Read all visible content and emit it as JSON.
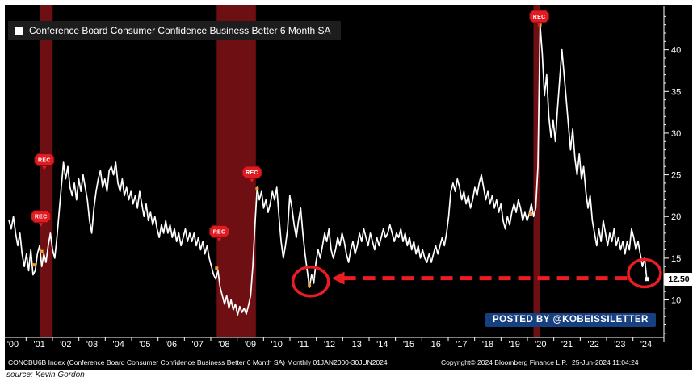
{
  "watermark": {
    "text": "POSTED BY @KOBEISSILETTER"
  },
  "source": {
    "text": "source: Kevin Gordon"
  },
  "footer": {
    "left": "CONCBU6B Index (Conference Board Consumer Confidence Business Better 6 Month SA)  Monthly 01JAN2000-30JUN2024",
    "copyright": "Copyright© 2024 Bloomberg Finance L.P.",
    "timestamp": "25-Jun-2024 11:04:24"
  },
  "chart_data": {
    "type": "line",
    "title": "Conference Board Consumer Confidence Business Better 6 Month SA",
    "frequency": "monthly",
    "start_year": 2000,
    "period": "01JAN2000-30JUN2024",
    "last_value": 12.5,
    "last_value_label": "12.50",
    "x_tick_labels": [
      "'00",
      "'01",
      "'02",
      "'03",
      "'04",
      "'05",
      "'06",
      "'07",
      "'08",
      "'09",
      "'10",
      "'11",
      "'12",
      "'13",
      "'14",
      "'15",
      "'16",
      "'17",
      "'18",
      "'19",
      "'20",
      "'21",
      "'22",
      "'23",
      "'24"
    ],
    "y_ticks": [
      10,
      15,
      20,
      25,
      30,
      35,
      40
    ],
    "ylim": [
      5.5,
      45
    ],
    "xlim": [
      1999.9,
      2024.95
    ],
    "values": [
      19.5,
      18.5,
      20.0,
      18.0,
      16.5,
      18.0,
      15.5,
      14.0,
      15.5,
      13.5,
      16.0,
      13.0,
      13.5,
      15.5,
      16.5,
      14.0,
      15.5,
      14.5,
      16.5,
      18.0,
      16.0,
      15.0,
      17.5,
      20.5,
      23.5,
      26.5,
      24.5,
      26.0,
      23.5,
      22.5,
      24.0,
      22.0,
      24.5,
      23.0,
      25.0,
      23.5,
      22.0,
      19.5,
      18.0,
      21.0,
      23.0,
      24.5,
      25.5,
      23.5,
      24.5,
      23.0,
      25.5,
      26.0,
      25.0,
      26.5,
      24.0,
      23.0,
      24.5,
      22.5,
      23.5,
      22.0,
      23.0,
      21.5,
      22.5,
      21.0,
      23.0,
      21.5,
      20.0,
      21.5,
      19.5,
      20.5,
      19.0,
      20.0,
      18.5,
      17.5,
      19.0,
      18.0,
      19.5,
      18.0,
      19.0,
      17.5,
      18.5,
      17.0,
      18.0,
      16.5,
      17.5,
      18.5,
      17.0,
      18.0,
      17.0,
      18.0,
      16.5,
      17.5,
      16.0,
      17.0,
      15.5,
      16.5,
      15.0,
      14.0,
      13.0,
      12.5,
      13.5,
      11.5,
      10.5,
      9.5,
      10.5,
      9.0,
      10.0,
      8.8,
      9.5,
      8.2,
      9.2,
      8.5,
      9.0,
      8.3,
      9.3,
      10.5,
      14.0,
      19.0,
      23.5,
      22.0,
      23.0,
      21.0,
      22.0,
      20.5,
      21.5,
      23.0,
      22.0,
      23.5,
      20.0,
      17.0,
      15.0,
      16.5,
      18.5,
      22.5,
      21.0,
      19.0,
      17.5,
      19.5,
      21.0,
      18.0,
      15.5,
      13.5,
      11.5,
      13.0,
      12.0,
      14.5,
      16.0,
      15.0,
      16.5,
      18.0,
      17.0,
      18.5,
      16.0,
      15.0,
      16.0,
      17.5,
      16.5,
      18.0,
      17.0,
      15.5,
      14.5,
      16.0,
      17.0,
      15.5,
      16.5,
      18.0,
      17.0,
      18.5,
      17.5,
      16.5,
      18.0,
      17.0,
      16.0,
      17.5,
      16.5,
      17.5,
      18.5,
      17.5,
      18.0,
      19.0,
      18.0,
      17.0,
      18.0,
      17.5,
      18.5,
      17.0,
      18.0,
      16.5,
      17.5,
      16.0,
      17.0,
      15.5,
      16.5,
      15.0,
      16.0,
      15.0,
      14.5,
      15.5,
      14.5,
      15.5,
      16.5,
      15.5,
      16.5,
      17.5,
      16.5,
      18.0,
      20.0,
      23.0,
      24.0,
      23.0,
      24.5,
      23.5,
      22.0,
      23.0,
      21.5,
      22.5,
      21.0,
      22.0,
      23.5,
      22.5,
      24.0,
      25.0,
      23.5,
      22.0,
      23.0,
      21.5,
      22.5,
      21.0,
      22.0,
      20.5,
      21.5,
      19.5,
      18.5,
      20.0,
      19.0,
      20.5,
      21.5,
      20.5,
      22.0,
      21.0,
      19.5,
      20.5,
      19.5,
      20.3,
      21.5,
      20.0,
      21.0,
      26.0,
      43.0,
      39.5,
      34.5,
      37.0,
      32.0,
      29.5,
      31.5,
      29.0,
      33.0,
      36.5,
      40.0,
      37.0,
      34.0,
      31.0,
      28.0,
      30.5,
      27.0,
      25.0,
      27.5,
      24.5,
      26.0,
      23.0,
      21.0,
      22.5,
      19.5,
      18.0,
      16.5,
      18.5,
      17.0,
      19.5,
      18.0,
      16.5,
      18.0,
      17.0,
      18.5,
      16.5,
      17.5,
      16.0,
      17.0,
      15.5,
      17.0,
      16.0,
      18.5,
      17.5,
      16.0,
      17.0,
      15.5,
      14.0,
      15.0,
      12.5
    ],
    "recession_bands": [
      [
        2001.17,
        2001.67
      ],
      [
        2007.95,
        2009.45
      ],
      [
        2020.08,
        2020.33
      ]
    ],
    "rec_badge_label": "REC",
    "rec_badges": [
      {
        "year": 2001.35,
        "value": 26.8
      },
      {
        "year": 2001.22,
        "value": 20.0
      },
      {
        "year": 2008.05,
        "value": 18.2
      },
      {
        "year": 2009.3,
        "value": 25.3
      },
      {
        "year": 2020.3,
        "value": 44.0
      }
    ],
    "markers": [
      [
        2000.95,
        14.2
      ],
      [
        2001.25,
        15.8
      ],
      [
        2007.95,
        13.8
      ],
      [
        2009.5,
        23.3
      ],
      [
        2011.5,
        11.8
      ],
      [
        2019.97,
        20.3
      ],
      [
        2020.33,
        43.0
      ]
    ],
    "annotations": {
      "circles": [
        {
          "year": 2011.55,
          "value": 12.2,
          "rx": 22,
          "ry": 18
        },
        {
          "year": 2024.33,
          "value": 13.2,
          "rx": 20,
          "ry": 17
        }
      ],
      "arrow": {
        "value": 12.6,
        "from_year": 2023.7,
        "to_year": 2012.35
      }
    },
    "colors": {
      "line": "#ffffff",
      "background": "#000000",
      "recession_band": "#6e1013",
      "rec_badge": "#e11b22",
      "annotation": "#ec1c24",
      "marker": "#f0a030",
      "axis": "#ffffff",
      "watermark_bg": "#16407f"
    }
  }
}
